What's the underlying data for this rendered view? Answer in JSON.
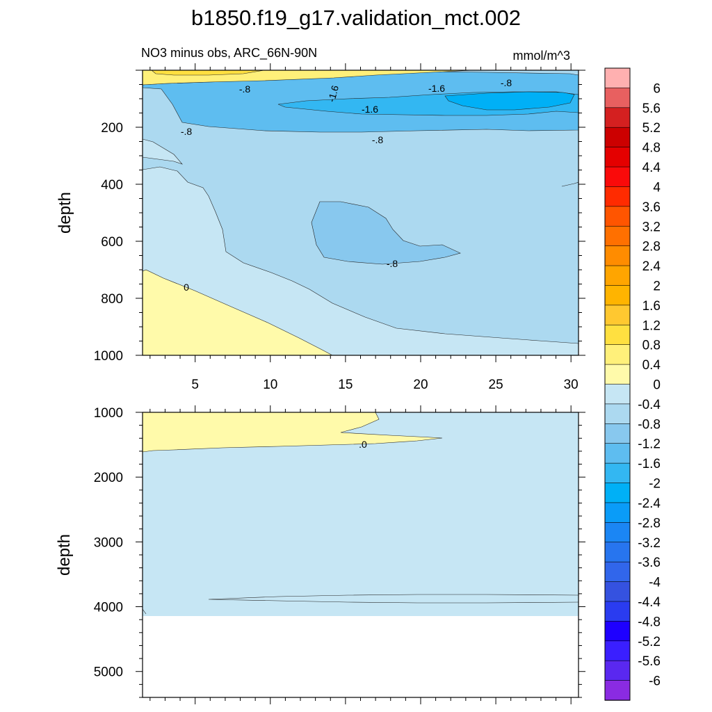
{
  "chart_data": {
    "type": "contour",
    "title": "b1850.f19_g17.validation_mct.002",
    "panels": [
      {
        "name": "upper",
        "subtitle_left": "NO3 minus obs, ARC_66N-90N",
        "subtitle_right": "mmol/m^3",
        "ylabel": "depth",
        "xlim": [
          1.5,
          30.5
        ],
        "ylim": [
          1000,
          0
        ],
        "xticks": [
          5,
          10,
          15,
          20,
          25,
          30
        ],
        "yticks": [
          200,
          400,
          600,
          800,
          1000
        ],
        "contour_labels": [
          {
            "text": "-.8",
            "x": 8.8,
            "y": 55
          },
          {
            "text": "-1.6",
            "x": 14.0,
            "y": 65
          },
          {
            "text": "-1.6",
            "x": 23.5,
            "y": 50
          },
          {
            "text": "-.8",
            "x": 26.0,
            "y": 40
          },
          {
            "text": "-1.6",
            "x": 17.3,
            "y": 120
          },
          {
            "text": "-.8",
            "x": 4.9,
            "y": 195
          },
          {
            "text": "-.8",
            "x": 18.3,
            "y": 265
          },
          {
            "text": "-.8",
            "x": 18.5,
            "y": 670
          },
          {
            "text": "0",
            "x": 5.0,
            "y": 795
          }
        ]
      },
      {
        "name": "lower",
        "ylabel": "depth",
        "xlim": [
          1.5,
          30.5
        ],
        "ylim": [
          5400,
          1000
        ],
        "yticks": [
          1000,
          2000,
          3000,
          4000,
          5000
        ],
        "bottom_depth": 4125,
        "contour_labels": [
          {
            "text": ".0",
            "x": 16.4,
            "y": 1480
          }
        ]
      }
    ],
    "colorbar": {
      "labels": [
        "6",
        "5.6",
        "5.2",
        "4.8",
        "4.4",
        "4",
        "3.6",
        "3.2",
        "2.8",
        "2.4",
        "2",
        "1.6",
        "1.2",
        "0.8",
        "0.4",
        "0",
        "-0.4",
        "-0.8",
        "-1.2",
        "-1.6",
        "-2",
        "-2.4",
        "-2.8",
        "-3.2",
        "-3.6",
        "-4",
        "-4.4",
        "-4.8",
        "-5.2",
        "-5.6",
        "-6"
      ],
      "colors": [
        "#ffb0b0",
        "#e86060",
        "#d42020",
        "#cc0000",
        "#e40000",
        "#fa0a0a",
        "#ff2b00",
        "#ff5500",
        "#ff7000",
        "#ff8c00",
        "#ffa500",
        "#ffb400",
        "#ffc830",
        "#ffe040",
        "#fff07a",
        "#fffaaa",
        "#c6e6f4",
        "#acd9f0",
        "#88c8ee",
        "#5ebdf0",
        "#33b7f2",
        "#00b0f6",
        "#0a9cf8",
        "#1b86f4",
        "#2775ef",
        "#3166eb",
        "#3552e0",
        "#2a3cf0",
        "#1e00ff",
        "#3a1fff",
        "#5a28f0",
        "#8a2be2"
      ]
    }
  }
}
